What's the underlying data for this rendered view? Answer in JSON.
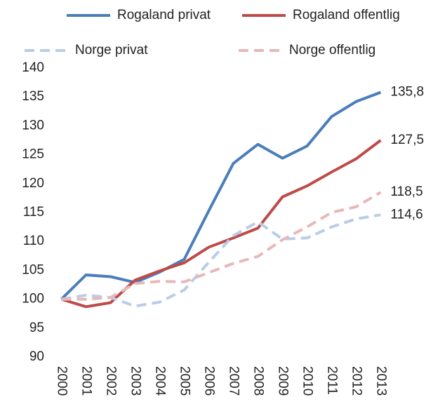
{
  "chart_data": {
    "type": "line",
    "categories": [
      "2000",
      "2001",
      "2002",
      "2003",
      "2004",
      "2005",
      "2006",
      "2007",
      "2008",
      "2009",
      "2010",
      "2011",
      "2012",
      "2013"
    ],
    "ylim": [
      90,
      140
    ],
    "yticks": [
      90,
      95,
      100,
      105,
      110,
      115,
      120,
      125,
      130,
      135,
      140
    ],
    "series": [
      {
        "name": "Rogaland privat",
        "color": "#4a7ebb",
        "dashed": false,
        "values": [
          100,
          104.2,
          103.9,
          102.9,
          104.7,
          106.9,
          115.3,
          123.5,
          126.8,
          124.4,
          126.5,
          131.6,
          134.2,
          135.8
        ],
        "value_labels": [
          null,
          null,
          null,
          null,
          null,
          null,
          null,
          null,
          null,
          null,
          null,
          null,
          null,
          "135,8"
        ]
      },
      {
        "name": "Rogaland offentlig",
        "color": "#be4b48",
        "dashed": false,
        "values": [
          100,
          98.7,
          99.4,
          103.3,
          104.9,
          106.3,
          109.0,
          110.6,
          112.3,
          117.7,
          119.6,
          122.0,
          124.3,
          127.5
        ],
        "value_labels": [
          null,
          null,
          null,
          null,
          null,
          null,
          null,
          null,
          null,
          null,
          null,
          null,
          null,
          "127,5"
        ]
      },
      {
        "name": "Norge privat",
        "color": "#b9cde5",
        "dashed": true,
        "values": [
          100,
          100.7,
          100.3,
          98.8,
          99.5,
          101.6,
          106.4,
          111.0,
          113.4,
          110.4,
          110.6,
          112.5,
          113.9,
          114.6
        ],
        "value_labels": [
          null,
          null,
          null,
          null,
          null,
          null,
          null,
          null,
          null,
          null,
          null,
          null,
          null,
          "114,6"
        ]
      },
      {
        "name": "Norge offentlig",
        "color": "#e6b9b8",
        "dashed": true,
        "values": [
          100,
          100.0,
          100.3,
          102.7,
          103.1,
          103.0,
          104.6,
          106.2,
          107.4,
          110.3,
          112.5,
          115.0,
          116.0,
          118.5
        ],
        "value_labels": [
          null,
          null,
          null,
          null,
          null,
          null,
          null,
          null,
          null,
          null,
          null,
          null,
          null,
          "118,5"
        ]
      }
    ]
  }
}
